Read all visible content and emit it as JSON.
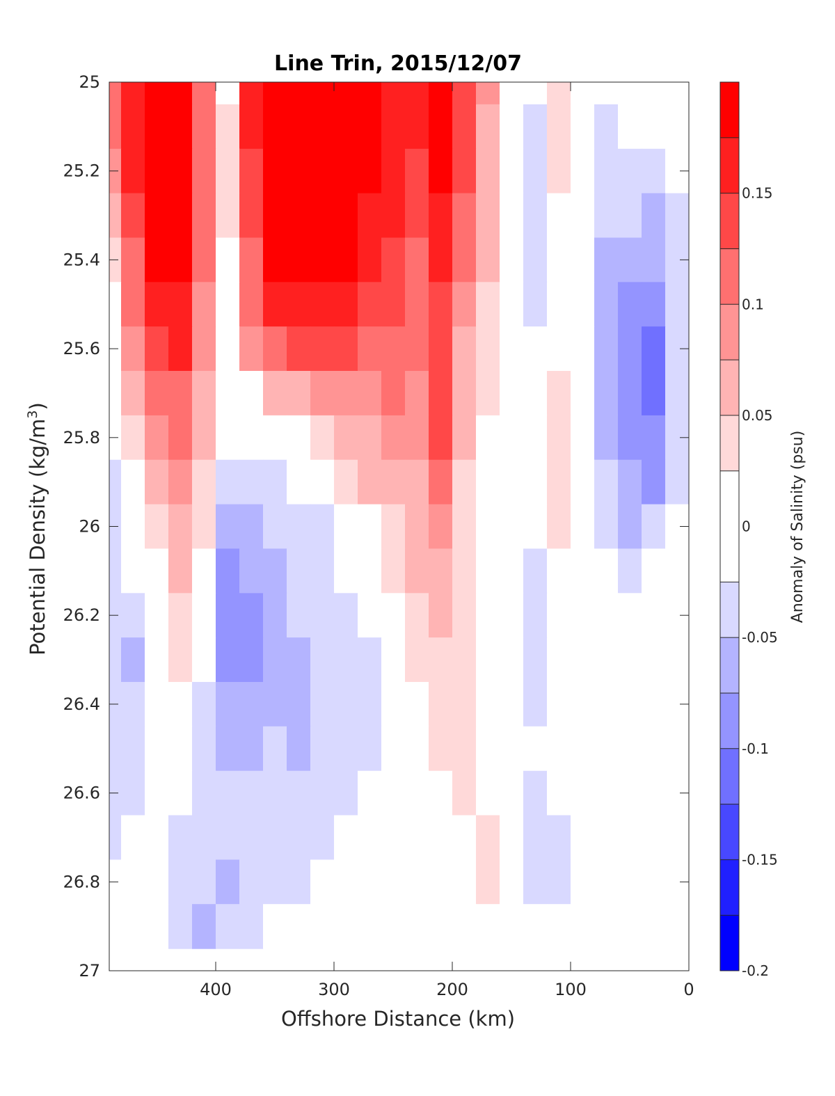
{
  "chart_data": {
    "type": "heatmap",
    "title": "Line Trin, 2015/12/07",
    "xlabel": "Offshore Distance (km)",
    "ylabel_main": "Potential Density (kg/m",
    "ylabel_sup": "3",
    "ylabel_close": ")",
    "xlim": [
      490,
      0
    ],
    "ylim": [
      25,
      27
    ],
    "x_ticks": [
      400,
      300,
      200,
      100,
      0
    ],
    "x_tick_labels": [
      "400",
      "300",
      "200",
      "100",
      "0"
    ],
    "y_ticks": [
      25,
      25.2,
      25.4,
      25.6,
      25.8,
      26,
      26.2,
      26.4,
      26.6,
      26.8,
      27
    ],
    "y_tick_labels": [
      "25",
      "25.2",
      "25.4",
      "25.6",
      "25.8",
      "26",
      "26.2",
      "26.4",
      "26.6",
      "26.8",
      "27"
    ],
    "y_reversed": true,
    "grid": false,
    "colorbar": {
      "label": "Anomaly of Salinity (psu)",
      "range": [
        -0.2,
        0.2
      ],
      "levels": [
        -0.2,
        -0.175,
        -0.15,
        -0.125,
        -0.1,
        -0.075,
        -0.05,
        -0.025,
        0.025,
        0.05,
        0.075,
        0.1,
        0.125,
        0.15,
        0.175,
        0.2
      ],
      "colors": [
        "#0000ff",
        "#2020ff",
        "#4848ff",
        "#7070ff",
        "#9494ff",
        "#b4b4ff",
        "#d9d9ff",
        "#ffffff",
        "#ffd9d9",
        "#ffb4b4",
        "#ff9494",
        "#ff7070",
        "#ff4848",
        "#ff2020",
        "#ff0000"
      ],
      "ticks": [
        -0.2,
        -0.15,
        -0.1,
        -0.05,
        0,
        0.05,
        0.1,
        0.15
      ],
      "tick_labels": [
        "-0.2",
        "-0.15",
        "-0.1",
        "-0.05",
        "0",
        "0.05",
        "0.1",
        "0.15"
      ]
    },
    "grid_x": [
      490,
      470,
      450,
      430,
      410,
      390,
      370,
      350,
      330,
      310,
      290,
      270,
      250,
      230,
      210,
      190,
      170,
      150,
      130,
      110,
      90,
      70,
      50,
      30,
      10
    ],
    "grid_y": [
      25,
      25.1,
      25.2,
      25.3,
      25.4,
      25.5,
      25.6,
      25.7,
      25.8,
      25.9,
      26,
      26.1,
      26.2,
      26.3,
      26.4,
      26.5,
      26.6,
      26.7,
      26.8,
      26.9
    ],
    "z": [
      [
        0.12,
        0.17,
        0.18,
        0.18,
        0.1,
        0.02,
        0.15,
        0.18,
        0.19,
        0.19,
        0.19,
        0.18,
        0.17,
        0.16,
        0.18,
        0.14,
        0.08,
        0.0,
        -0.02,
        0.03,
        0.0,
        -0.02,
        0.0,
        0.0,
        0.0
      ],
      [
        0.11,
        0.17,
        0.19,
        0.19,
        0.11,
        0.03,
        0.15,
        0.18,
        0.2,
        0.2,
        0.2,
        0.18,
        0.17,
        0.15,
        0.18,
        0.14,
        0.07,
        0.0,
        -0.03,
        0.03,
        0.0,
        -0.03,
        -0.02,
        0.0,
        0.0
      ],
      [
        0.09,
        0.16,
        0.19,
        0.19,
        0.12,
        0.03,
        0.14,
        0.19,
        0.2,
        0.2,
        0.19,
        0.18,
        0.16,
        0.14,
        0.18,
        0.13,
        0.06,
        0.0,
        -0.03,
        0.03,
        0.0,
        -0.04,
        -0.04,
        -0.04,
        -0.01
      ],
      [
        0.06,
        0.14,
        0.19,
        0.19,
        0.11,
        0.03,
        0.13,
        0.19,
        0.2,
        0.2,
        0.19,
        0.17,
        0.15,
        0.13,
        0.16,
        0.12,
        0.05,
        0.0,
        -0.03,
        0.02,
        0.0,
        -0.05,
        -0.05,
        -0.06,
        -0.03
      ],
      [
        0.04,
        0.12,
        0.18,
        0.18,
        0.1,
        0.02,
        0.12,
        0.18,
        0.19,
        0.19,
        0.18,
        0.16,
        0.14,
        0.12,
        0.15,
        0.1,
        0.05,
        0.0,
        -0.03,
        0.0,
        0.0,
        -0.06,
        -0.07,
        -0.07,
        -0.03
      ],
      [
        0.02,
        0.1,
        0.16,
        0.17,
        0.09,
        0.01,
        0.1,
        0.15,
        0.16,
        0.16,
        0.15,
        0.14,
        0.13,
        0.11,
        0.14,
        0.08,
        0.04,
        0.0,
        -0.03,
        0.0,
        0.0,
        -0.07,
        -0.09,
        -0.09,
        -0.03
      ],
      [
        0.01,
        0.08,
        0.14,
        0.15,
        0.08,
        0.01,
        0.08,
        0.12,
        0.13,
        0.13,
        0.13,
        0.12,
        0.12,
        0.1,
        0.13,
        0.07,
        0.03,
        0.0,
        -0.02,
        0.02,
        0.0,
        -0.07,
        -0.09,
        -0.11,
        -0.03
      ],
      [
        0.0,
        0.06,
        0.11,
        0.12,
        0.06,
        -0.01,
        0.02,
        0.06,
        0.07,
        0.08,
        0.09,
        0.09,
        0.1,
        0.09,
        0.13,
        0.06,
        0.03,
        0.0,
        0.0,
        0.04,
        0.0,
        -0.07,
        -0.1,
        -0.11,
        -0.03
      ],
      [
        -0.01,
        0.04,
        0.09,
        0.1,
        0.05,
        -0.02,
        -0.02,
        0.0,
        0.01,
        0.03,
        0.06,
        0.07,
        0.08,
        0.08,
        0.13,
        0.05,
        0.02,
        0.0,
        0.0,
        0.04,
        0.0,
        -0.06,
        -0.08,
        -0.1,
        -0.03
      ],
      [
        -0.03,
        0.02,
        0.06,
        0.08,
        0.04,
        -0.04,
        -0.05,
        -0.03,
        -0.02,
        0.0,
        0.03,
        0.05,
        0.06,
        0.07,
        0.1,
        0.04,
        0.01,
        0.0,
        0.0,
        0.04,
        0.0,
        -0.05,
        -0.07,
        -0.08,
        -0.03
      ],
      [
        -0.03,
        0.0,
        0.04,
        0.06,
        0.03,
        -0.07,
        -0.06,
        -0.05,
        -0.04,
        -0.03,
        0.0,
        0.02,
        0.04,
        0.06,
        0.08,
        0.04,
        0.0,
        0.0,
        -0.02,
        0.03,
        0.0,
        -0.03,
        -0.06,
        -0.05,
        -0.02
      ],
      [
        -0.03,
        -0.01,
        0.02,
        0.05,
        0.02,
        -0.08,
        -0.07,
        -0.06,
        -0.05,
        -0.04,
        -0.02,
        0.0,
        0.03,
        0.05,
        0.07,
        0.04,
        0.0,
        0.0,
        -0.03,
        0.0,
        0.0,
        -0.02,
        -0.04,
        -0.02,
        -0.01
      ],
      [
        -0.04,
        -0.05,
        0.0,
        0.04,
        0.0,
        -0.09,
        -0.08,
        -0.06,
        -0.05,
        -0.05,
        -0.03,
        -0.02,
        0.02,
        0.04,
        0.06,
        0.03,
        0.0,
        0.0,
        -0.03,
        0.0,
        0.0,
        -0.01,
        -0.01,
        0.0,
        0.0
      ],
      [
        -0.05,
        -0.06,
        -0.01,
        0.03,
        -0.01,
        -0.09,
        -0.08,
        -0.06,
        -0.06,
        -0.05,
        -0.04,
        -0.03,
        0.01,
        0.03,
        0.04,
        0.03,
        0.0,
        0.0,
        -0.03,
        0.0,
        0.0,
        0.0,
        0.0,
        0.0,
        0.0
      ],
      [
        -0.05,
        -0.05,
        -0.01,
        0.0,
        -0.03,
        -0.07,
        -0.07,
        -0.06,
        -0.06,
        -0.05,
        -0.04,
        -0.03,
        0.0,
        0.0,
        0.03,
        0.03,
        0.0,
        0.0,
        -0.03,
        0.0,
        0.0,
        0.0,
        0.0,
        0.0,
        0.0
      ],
      [
        -0.04,
        -0.03,
        0.0,
        0.0,
        -0.03,
        -0.06,
        -0.06,
        -0.05,
        -0.06,
        -0.05,
        -0.04,
        -0.03,
        0.0,
        0.0,
        0.03,
        0.03,
        0.0,
        0.0,
        0.0,
        0.0,
        0.0,
        0.0,
        0.0,
        0.0,
        0.0
      ],
      [
        -0.03,
        -0.03,
        0.0,
        -0.02,
        -0.03,
        -0.04,
        -0.04,
        -0.04,
        -0.05,
        -0.04,
        -0.03,
        -0.02,
        0.0,
        0.0,
        0.0,
        0.03,
        0.02,
        0.0,
        -0.03,
        0.0,
        0.0,
        0.0,
        0.0,
        0.0,
        0.0
      ],
      [
        -0.03,
        -0.02,
        0.0,
        -0.03,
        -0.04,
        -0.04,
        -0.03,
        -0.03,
        -0.03,
        -0.03,
        -0.02,
        0.0,
        0.0,
        0.0,
        0.0,
        0.0,
        0.03,
        0.0,
        -0.03,
        -0.03,
        0.0,
        0.0,
        0.0,
        0.0,
        0.0
      ],
      [
        -0.02,
        0.0,
        0.0,
        -0.04,
        -0.05,
        -0.06,
        -0.04,
        -0.03,
        -0.03,
        -0.02,
        0.0,
        0.0,
        0.0,
        0.0,
        0.0,
        0.0,
        0.03,
        0.0,
        -0.03,
        -0.03,
        0.0,
        0.0,
        0.0,
        -0.02,
        0.0
      ],
      [
        0.0,
        0.0,
        0.0,
        -0.03,
        -0.06,
        -0.05,
        -0.03,
        -0.02,
        0.0,
        0.0,
        0.0,
        0.0,
        0.0,
        0.0,
        0.0,
        0.0,
        0.0,
        0.0,
        -0.02,
        0.0,
        0.0,
        0.0,
        0.0,
        0.0,
        0.0
      ]
    ]
  }
}
